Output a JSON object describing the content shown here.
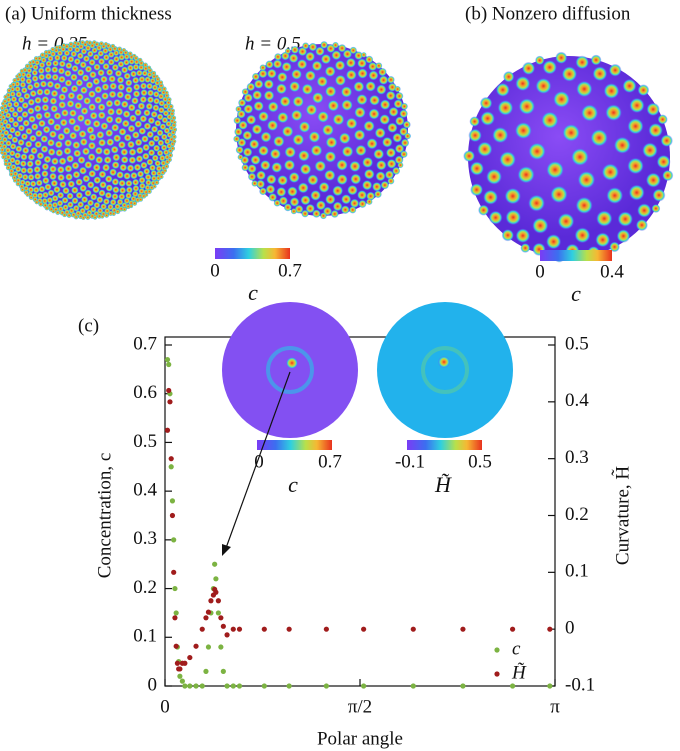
{
  "figure": {
    "panel_a": "(a) Uniform thickness",
    "h1": "h = 0.25",
    "h2": "h = 0.5",
    "panel_b": "(b) Nonzero diffusion",
    "cbar_a": {
      "min": "0",
      "max": "0.7",
      "label": "c"
    },
    "cbar_b": {
      "min": "0",
      "max": "0.4",
      "label": "c"
    },
    "panel_c": "(c)",
    "inset_c": {
      "min": "0",
      "max": "0.7",
      "label": "c"
    },
    "inset_h": {
      "min": "-0.1",
      "max": "0.5",
      "label": "H̃"
    }
  },
  "chart_data": {
    "type": "scatter",
    "x_label": "Polar angle",
    "y_label": "Concentration, c",
    "y2_label": "Curvature, H̃",
    "x": [
      0.02,
      0.03,
      0.04,
      0.05,
      0.06,
      0.07,
      0.08,
      0.09,
      0.1,
      0.11,
      0.12,
      0.14,
      0.16,
      0.2,
      0.25,
      0.3,
      0.33,
      0.35,
      0.37,
      0.39,
      0.4,
      0.41,
      0.43,
      0.45,
      0.47,
      0.5,
      0.55,
      0.6,
      0.8,
      1.0,
      1.3,
      1.6,
      2.0,
      2.4,
      2.8,
      3.1
    ],
    "series": [
      {
        "name": "c",
        "color": "#7cb342",
        "values": [
          0.67,
          0.66,
          0.6,
          0.45,
          0.38,
          0.3,
          0.2,
          0.15,
          0.08,
          0.05,
          0.02,
          0.01,
          0,
          0,
          0,
          0,
          0.03,
          0.08,
          0.15,
          0.2,
          0.25,
          0.22,
          0.15,
          0.08,
          0.03,
          0,
          0,
          0,
          0,
          0,
          0,
          0,
          0,
          0,
          0,
          0
        ]
      },
      {
        "name": "H̃",
        "color": "#a01c1c",
        "axis": "y2",
        "values": [
          0.35,
          0.42,
          0.4,
          0.3,
          0.2,
          0.1,
          0.02,
          -0.03,
          -0.06,
          -0.07,
          -0.07,
          -0.06,
          -0.06,
          -0.05,
          -0.03,
          0,
          0.02,
          0.03,
          0.05,
          0.06,
          0.07,
          0.065,
          0.05,
          0.02,
          0.005,
          -0.01,
          0,
          0,
          0,
          0,
          0,
          0,
          0,
          0,
          0,
          0
        ]
      }
    ],
    "xlim": [
      0,
      3.14159
    ],
    "xticks": [
      0,
      {
        "value": 1.5708,
        "label": "π/2"
      },
      {
        "value": 3.14159,
        "label": "π"
      }
    ],
    "ylim": [
      0,
      0.7
    ],
    "yticks": [
      0,
      0.1,
      0.2,
      0.3,
      0.4,
      0.5,
      0.6,
      0.7
    ],
    "y2lim": [
      -0.1,
      0.5
    ],
    "y2ticks": [
      -0.1,
      0,
      0.1,
      0.2,
      0.3,
      0.4,
      0.5
    ],
    "legend": "lower right"
  }
}
